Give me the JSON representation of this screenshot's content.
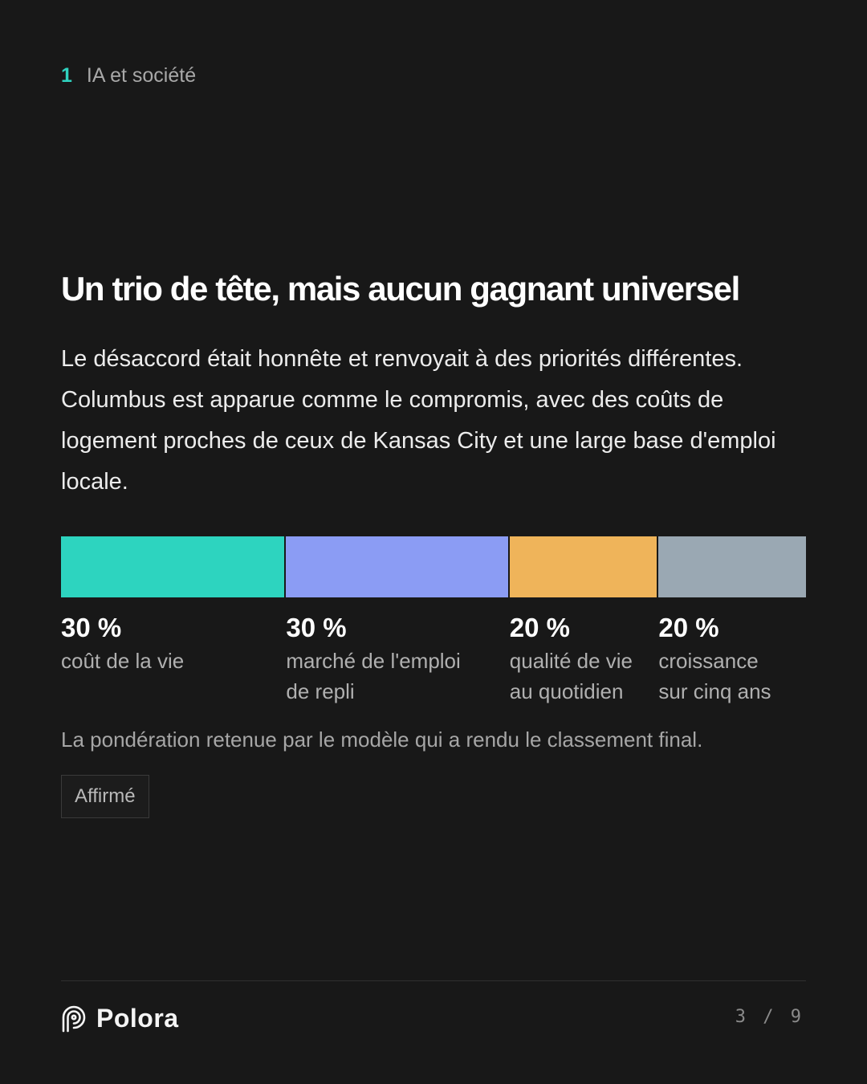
{
  "section": {
    "number": "1",
    "label": "IA et société"
  },
  "title": "Un trio de tête, mais aucun gagnant universel",
  "paragraph": "Le désaccord était honnête et renvoyait à des priorités différentes. Columbus est apparue comme le compromis, avec des coûts de logement proches de ceux de Kansas City et une large base d'emploi locale.",
  "weights": [
    {
      "value": 30,
      "pct_label": "30 %",
      "line1": "coût de la vie",
      "line2": "",
      "color": "#2dd4bf"
    },
    {
      "value": 30,
      "pct_label": "30 %",
      "line1": "marché de l'emploi",
      "line2": "de repli",
      "color": "#8b9cf4"
    },
    {
      "value": 20,
      "pct_label": "20 %",
      "line1": "qualité de vie",
      "line2": "au quotidien",
      "color": "#efb45a"
    },
    {
      "value": 20,
      "pct_label": "20 %",
      "line1": "croissance",
      "line2": "sur cinq ans",
      "color": "#9aa8b3"
    }
  ],
  "caption": "La pondération retenue par le modèle qui a rendu le classement final.",
  "badge": "Affirmé",
  "footer": {
    "brand": "Polora",
    "page_current": "3",
    "page_sep": "/",
    "page_total": "9"
  }
}
